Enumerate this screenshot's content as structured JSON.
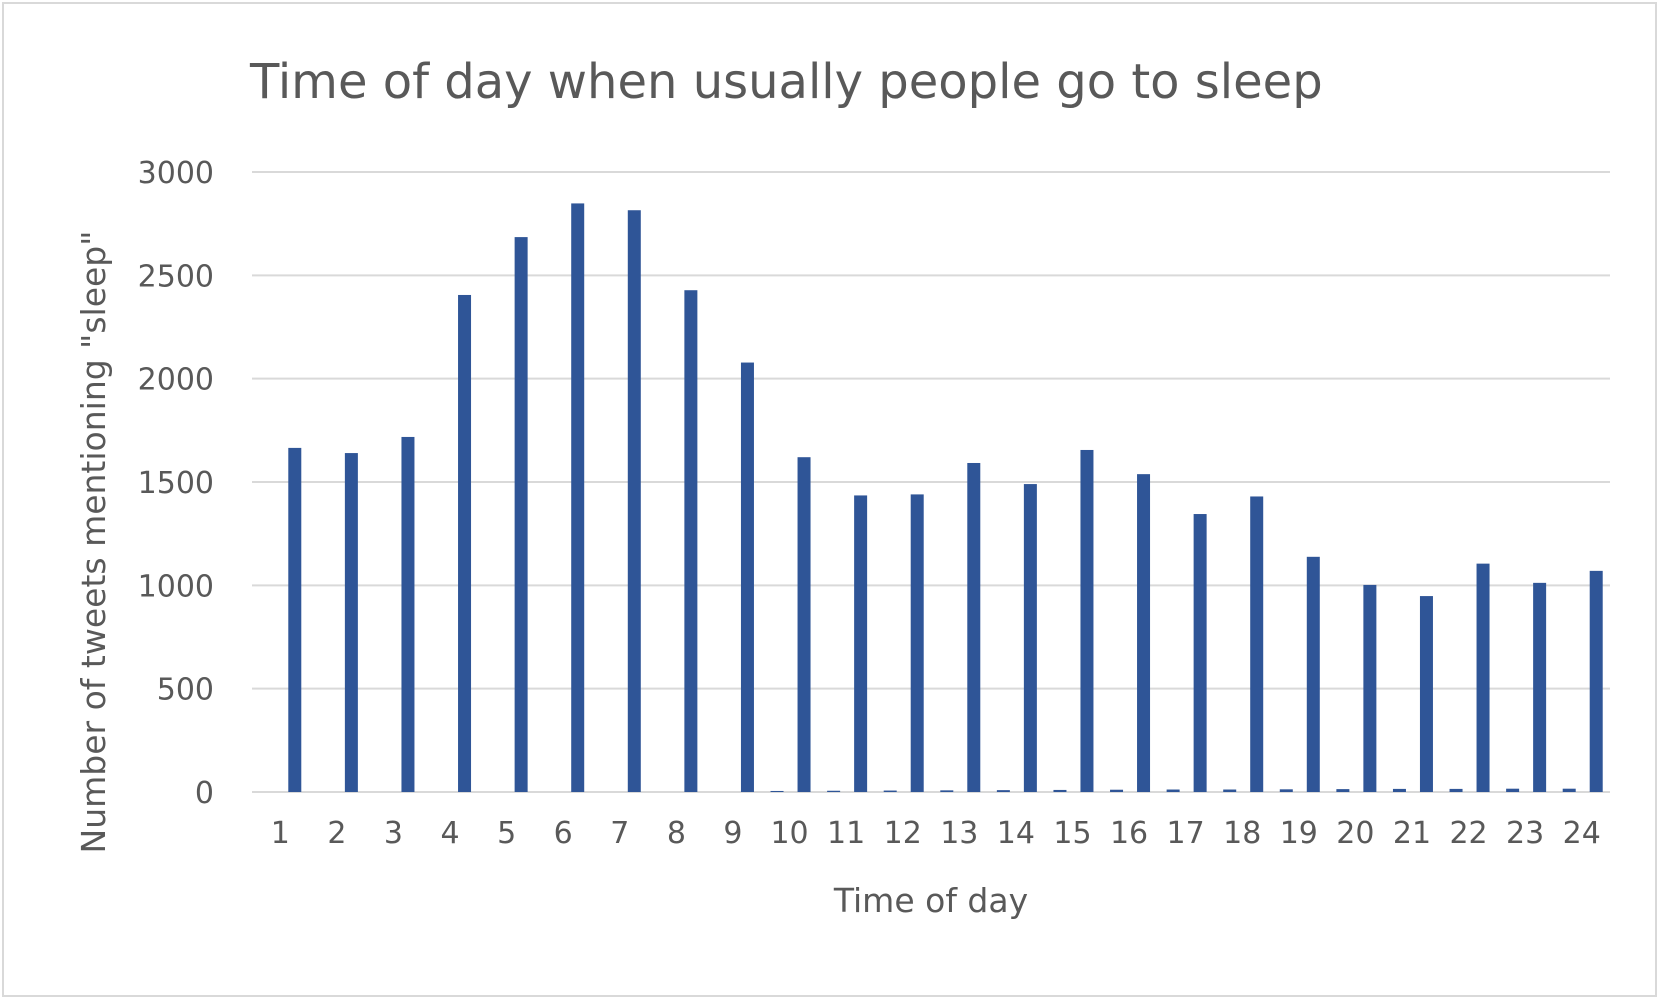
{
  "chart_data": {
    "type": "bar",
    "title": "Time of day when usually people go to sleep",
    "xlabel": "Time of day",
    "ylabel": "Number of tweets mentioning \"sleep\"",
    "ylim": [
      0,
      3000
    ],
    "yticks": [
      "0",
      "500",
      "1000",
      "1500",
      "2000",
      "2500",
      "3000"
    ],
    "grid": true,
    "categories": [
      "1",
      "2",
      "3",
      "4",
      "5",
      "6",
      "7",
      "8",
      "9",
      "10",
      "11",
      "12",
      "13",
      "14",
      "15",
      "16",
      "17",
      "18",
      "19",
      "20",
      "21",
      "22",
      "23",
      "24"
    ],
    "series": [
      {
        "values": [
          1665,
          1640,
          1718,
          2405,
          2685,
          2848,
          2815,
          2428,
          2078,
          1620,
          1435,
          1440,
          1592,
          1490,
          1655,
          1538,
          1345,
          1430,
          1138,
          1002,
          948,
          1105,
          1012,
          1070
        ]
      },
      {
        "values": [
          0,
          0,
          0,
          0,
          0,
          0,
          0,
          0,
          0,
          5,
          6,
          7,
          8,
          9,
          10,
          11,
          12,
          12,
          13,
          14,
          15,
          15,
          16,
          16
        ]
      }
    ],
    "colors": {
      "bar": "#2f5597",
      "grid": "#d9d9d9",
      "text": "#595959"
    }
  }
}
